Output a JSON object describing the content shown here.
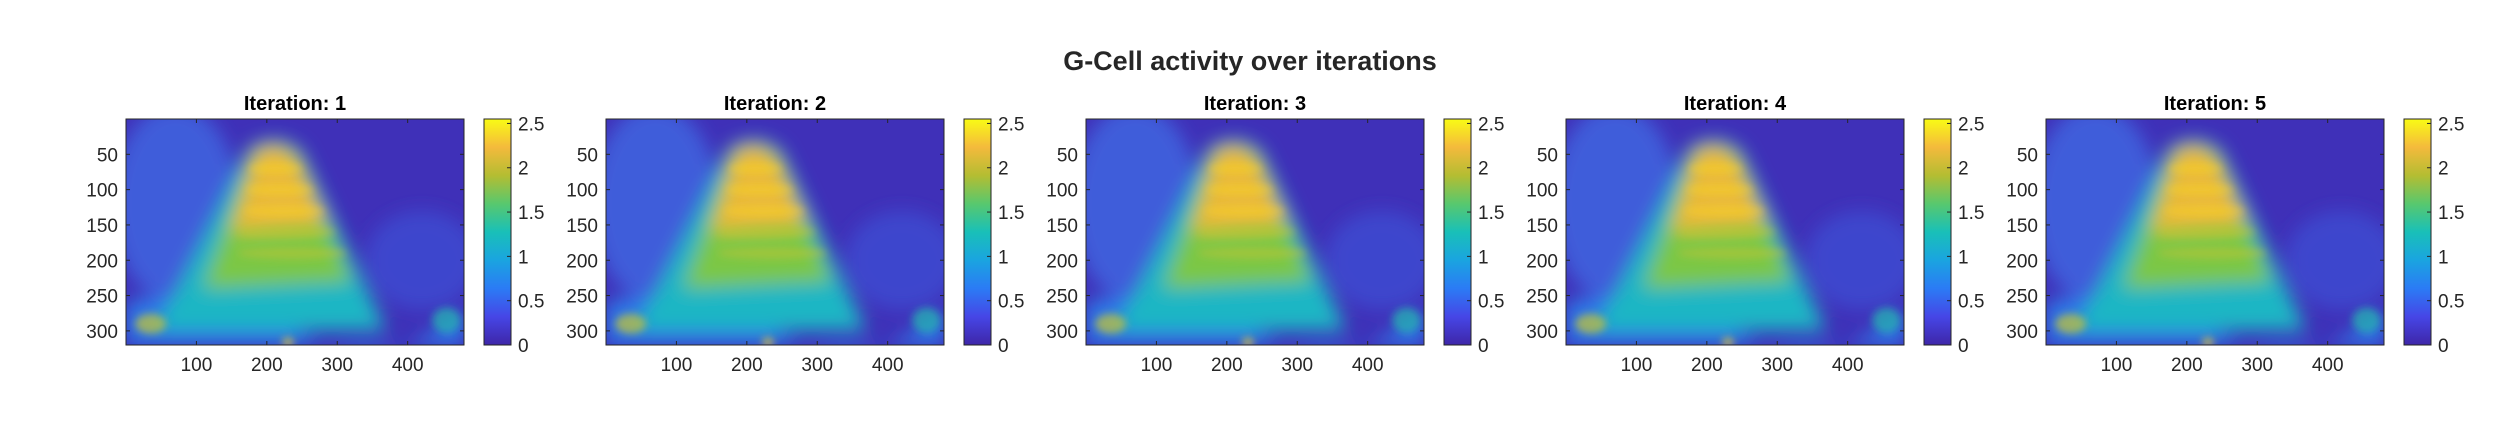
{
  "figure": {
    "title": "G-Cell activity over iterations"
  },
  "chart_data": [
    {
      "type": "heatmap",
      "title": "Iteration: 1",
      "x_ticks": [
        100,
        200,
        300,
        400
      ],
      "y_ticks": [
        50,
        100,
        150,
        200,
        250,
        300
      ],
      "xlim": [
        0,
        480
      ],
      "ylim": [
        0,
        320
      ],
      "y_reversed": true,
      "colorbar": {
        "ticks": [
          0,
          0.5,
          1,
          1.5,
          2,
          2.5
        ],
        "tick_labels": [
          "0",
          "0.5",
          "1",
          "1.5",
          "2",
          "2.5"
        ],
        "range": [
          0,
          2.55
        ],
        "colormap": "parula"
      }
    },
    {
      "type": "heatmap",
      "title": "Iteration: 2",
      "x_ticks": [
        100,
        200,
        300,
        400
      ],
      "y_ticks": [
        50,
        100,
        150,
        200,
        250,
        300
      ],
      "xlim": [
        0,
        480
      ],
      "ylim": [
        0,
        320
      ],
      "y_reversed": true,
      "colorbar": {
        "ticks": [
          0,
          0.5,
          1,
          1.5,
          2,
          2.5
        ],
        "tick_labels": [
          "0",
          "0.5",
          "1",
          "1.5",
          "2",
          "2.5"
        ],
        "range": [
          0,
          2.55
        ],
        "colormap": "parula"
      }
    },
    {
      "type": "heatmap",
      "title": "Iteration: 3",
      "x_ticks": [
        100,
        200,
        300,
        400
      ],
      "y_ticks": [
        50,
        100,
        150,
        200,
        250,
        300
      ],
      "xlim": [
        0,
        480
      ],
      "ylim": [
        0,
        320
      ],
      "y_reversed": true,
      "colorbar": {
        "ticks": [
          0,
          0.5,
          1,
          1.5,
          2,
          2.5
        ],
        "tick_labels": [
          "0",
          "0.5",
          "1",
          "1.5",
          "2",
          "2.5"
        ],
        "range": [
          0,
          2.55
        ],
        "colormap": "parula"
      }
    },
    {
      "type": "heatmap",
      "title": "Iteration: 4",
      "x_ticks": [
        100,
        200,
        300,
        400
      ],
      "y_ticks": [
        50,
        100,
        150,
        200,
        250,
        300
      ],
      "xlim": [
        0,
        480
      ],
      "ylim": [
        0,
        320
      ],
      "y_reversed": true,
      "colorbar": {
        "ticks": [
          0,
          0.5,
          1,
          1.5,
          2,
          2.5
        ],
        "tick_labels": [
          "0",
          "0.5",
          "1",
          "1.5",
          "2",
          "2.5"
        ],
        "range": [
          0,
          2.55
        ],
        "colormap": "parula"
      }
    },
    {
      "type": "heatmap",
      "title": "Iteration: 5",
      "x_ticks": [
        100,
        200,
        300,
        400
      ],
      "y_ticks": [
        50,
        100,
        150,
        200,
        250,
        300
      ],
      "xlim": [
        0,
        480
      ],
      "ylim": [
        0,
        320
      ],
      "y_reversed": true,
      "colorbar": {
        "ticks": [
          0,
          0.5,
          1,
          1.5,
          2,
          2.5
        ],
        "tick_labels": [
          "0",
          "0.5",
          "1",
          "1.5",
          "2",
          "2.5"
        ],
        "range": [
          0,
          2.55
        ],
        "colormap": "parula"
      }
    }
  ],
  "colors": {
    "parula_low": "#3e26a8",
    "parula_mid_blue": "#2b7bf5",
    "parula_teal": "#19c0b8",
    "parula_green": "#8cc832",
    "parula_high": "#f9fb15",
    "axis": "#262626"
  }
}
